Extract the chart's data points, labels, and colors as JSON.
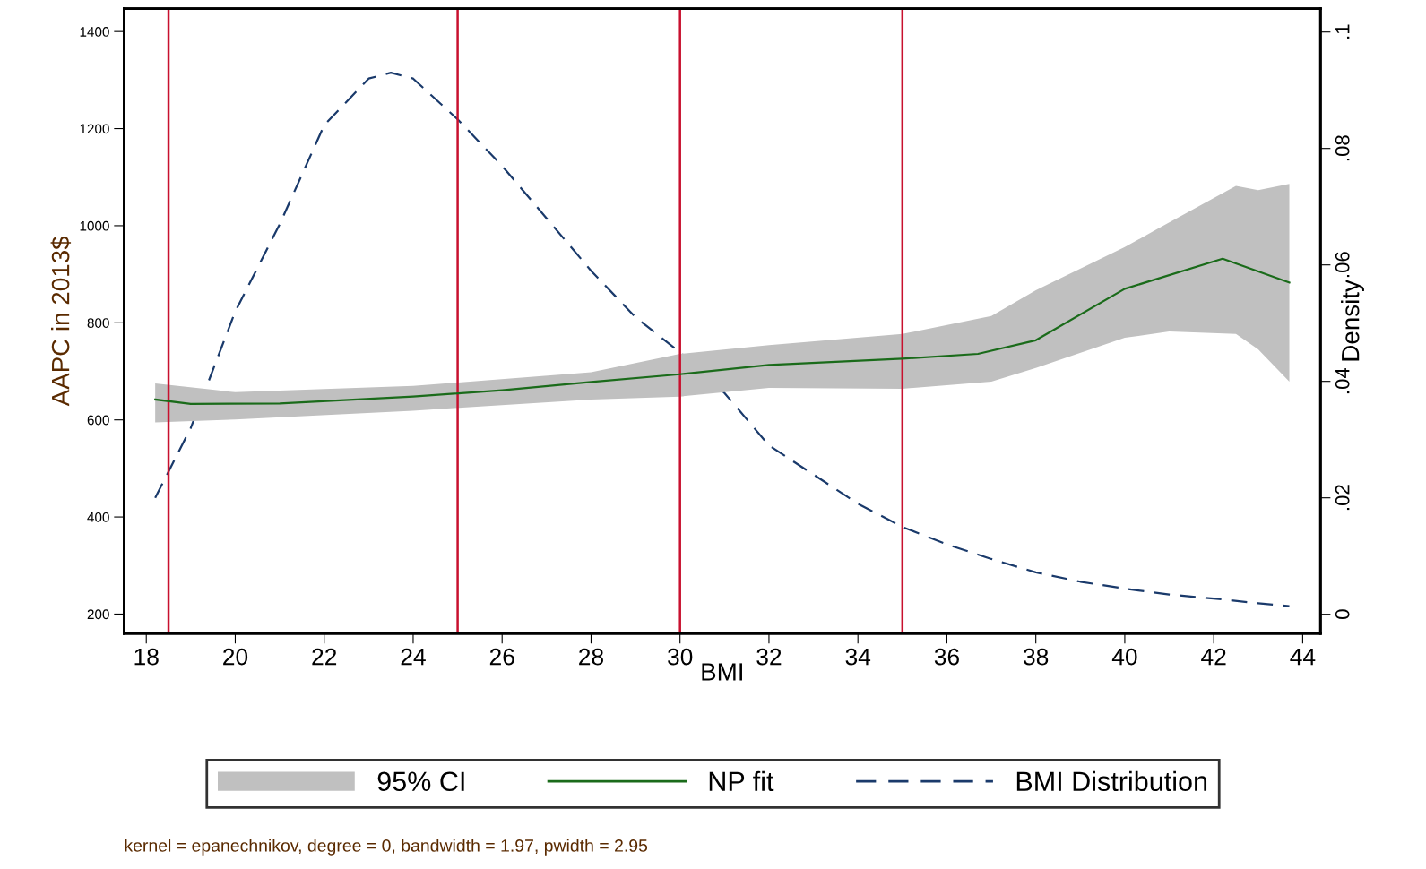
{
  "chart_data": {
    "type": "line",
    "xlabel": "BMI",
    "ylabel": "AAPC in 2013$",
    "y2label": "Density",
    "xlim": [
      17.5,
      44.4
    ],
    "xticks": [
      18,
      20,
      22,
      24,
      26,
      28,
      30,
      32,
      34,
      36,
      38,
      40,
      42,
      44
    ],
    "ylim": [
      160,
      1447
    ],
    "yticks": [
      200,
      400,
      600,
      800,
      1000,
      1200,
      1400
    ],
    "y2lim": [
      -0.0033,
      0.104
    ],
    "y2ticks": [
      {
        "value": 0,
        "label": "0"
      },
      {
        "value": 0.02,
        "label": ".02"
      },
      {
        "value": 0.04,
        "label": ".04"
      },
      {
        "value": 0.06,
        "label": ".06"
      },
      {
        "value": 0.08,
        "label": ".08"
      },
      {
        "value": 0.1,
        "label": ".1"
      }
    ],
    "grid": false,
    "legend": "bottom",
    "series": [
      {
        "name": "95% CI",
        "type": "area",
        "color": "#c0c0c0",
        "x": [
          18.2,
          20,
          24,
          28,
          30,
          32,
          35,
          37,
          38,
          40,
          41,
          42.5,
          43,
          43.7
        ],
        "values": [
          null,
          null,
          null,
          null,
          null,
          null,
          null,
          null,
          null,
          null,
          null,
          null,
          null,
          null
        ],
        "lower": [
          595,
          601,
          619,
          642,
          648,
          666,
          664,
          679,
          707,
          769,
          782,
          777,
          745,
          679
        ],
        "upper": [
          675,
          657,
          670,
          698,
          736,
          754,
          777,
          814,
          867,
          956,
          1007,
          1082,
          1073,
          1086
        ]
      },
      {
        "name": "NP fit",
        "color": "#1a6b1a",
        "line_style": "solid",
        "x": [
          18.2,
          19,
          21,
          24,
          26,
          28,
          30,
          32,
          35,
          36.7,
          38,
          40,
          42.2,
          43.7
        ],
        "values": [
          642,
          633,
          634,
          648,
          661,
          678,
          694,
          713,
          726,
          736,
          764,
          870,
          932,
          883
        ]
      },
      {
        "name": "BMI Distribution",
        "type": "line",
        "axis": "y2",
        "color": "#1a3a6b",
        "line_style": "dashed",
        "x": [
          18.2,
          19,
          20,
          21,
          22,
          23,
          23.5,
          24,
          25,
          26,
          27,
          28,
          29,
          30,
          31,
          32,
          33,
          34,
          35,
          36,
          37,
          38,
          39,
          40,
          41,
          42,
          43,
          43.7
        ],
        "values": [
          0.02,
          0.032,
          0.052,
          0.067,
          0.084,
          0.092,
          0.093,
          0.092,
          0.085,
          0.077,
          0.068,
          0.059,
          0.051,
          0.045,
          0.038,
          0.029,
          0.024,
          0.019,
          0.015,
          0.012,
          0.0095,
          0.0072,
          0.0056,
          0.0044,
          0.0034,
          0.0027,
          0.0019,
          0.0014
        ]
      }
    ],
    "ref_lines": [
      {
        "axis": "x",
        "value": 18.5,
        "color": "#c8102e"
      },
      {
        "axis": "x",
        "value": 25,
        "color": "#c8102e"
      },
      {
        "axis": "x",
        "value": 30,
        "color": "#c8102e"
      },
      {
        "axis": "x",
        "value": 35,
        "color": "#c8102e"
      }
    ],
    "annotations": [
      "kernel = epanechnikov, degree = 0, bandwidth = 1.97, pwidth = 2.95"
    ]
  }
}
